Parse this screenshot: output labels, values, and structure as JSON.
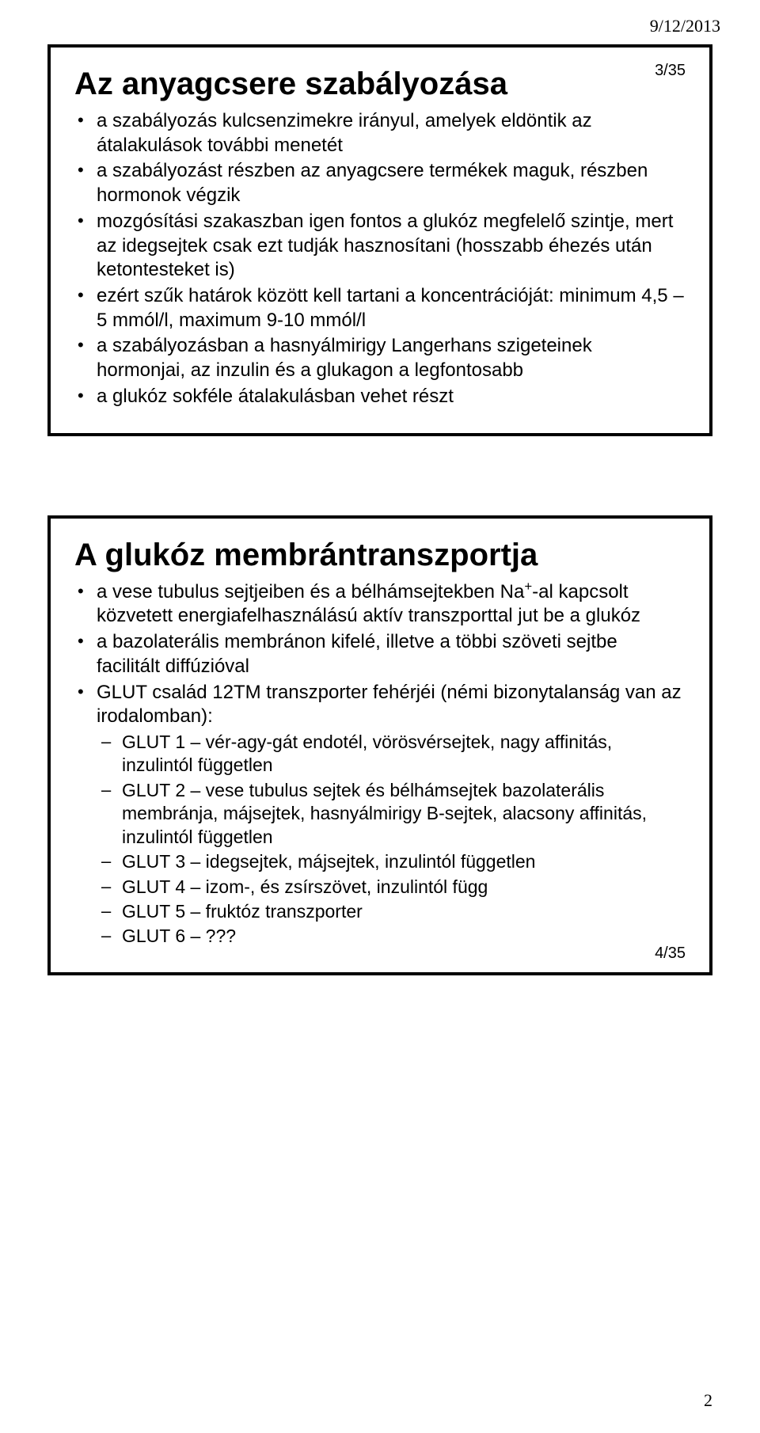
{
  "header": {
    "date": "9/12/2013"
  },
  "slide1": {
    "number": "3/35",
    "title": "Az anyagcsere szabályozása",
    "bullets": [
      "a szabályozás kulcsenzimekre irányul, amelyek eldöntik az átalakulások további menetét",
      "a szabályozást részben az anyagcsere termékek maguk, részben hormonok végzik",
      "mozgósítási szakaszban igen fontos a glukóz megfelelő szintje, mert az idegsejtek csak ezt tudják hasznosítani (hosszabb éhezés után ketontesteket is)",
      "ezért szűk határok között kell tartani a koncentrációját: minimum 4,5 – 5 mmól/l, maximum 9-10 mmól/l",
      "a szabályozásban a hasnyálmirigy Langerhans szigeteinek hormonjai, az inzulin és a glukagon a legfontosabb",
      "a glukóz sokféle átalakulásban vehet részt"
    ]
  },
  "slide2": {
    "number": "4/35",
    "title": "A glukóz membrántranszportja",
    "bullets": [
      {
        "text_pre": "a vese tubulus sejtjeiben és a bélhámsejtekben Na",
        "sup": "+",
        "text_post": "-al kapcsolt közvetett energiafelhasználású aktív transzporttal jut be a glukóz"
      },
      {
        "text": "a bazolaterális membránon kifelé, illetve a többi szöveti sejtbe facilitált diffúzióval"
      },
      {
        "text": "GLUT család 12TM transzporter fehérjéi (némi bizonytalanság van az irodalomban):",
        "sub": [
          "GLUT 1 – vér-agy-gát endotél, vörösvérsejtek, nagy affinitás, inzulintól független",
          "GLUT 2 – vese tubulus sejtek és bélhámsejtek bazolaterális membránja, májsejtek, hasnyálmirigy B-sejtek, alacsony affinitás, inzulintól független",
          "GLUT 3 – idegsejtek, májsejtek, inzulintól független",
          "GLUT 4 – izom-, és zsírszövet, inzulintól függ",
          "GLUT 5 – fruktóz transzporter",
          "GLUT 6 – ???"
        ]
      }
    ]
  },
  "footer": {
    "pagenum": "2"
  }
}
